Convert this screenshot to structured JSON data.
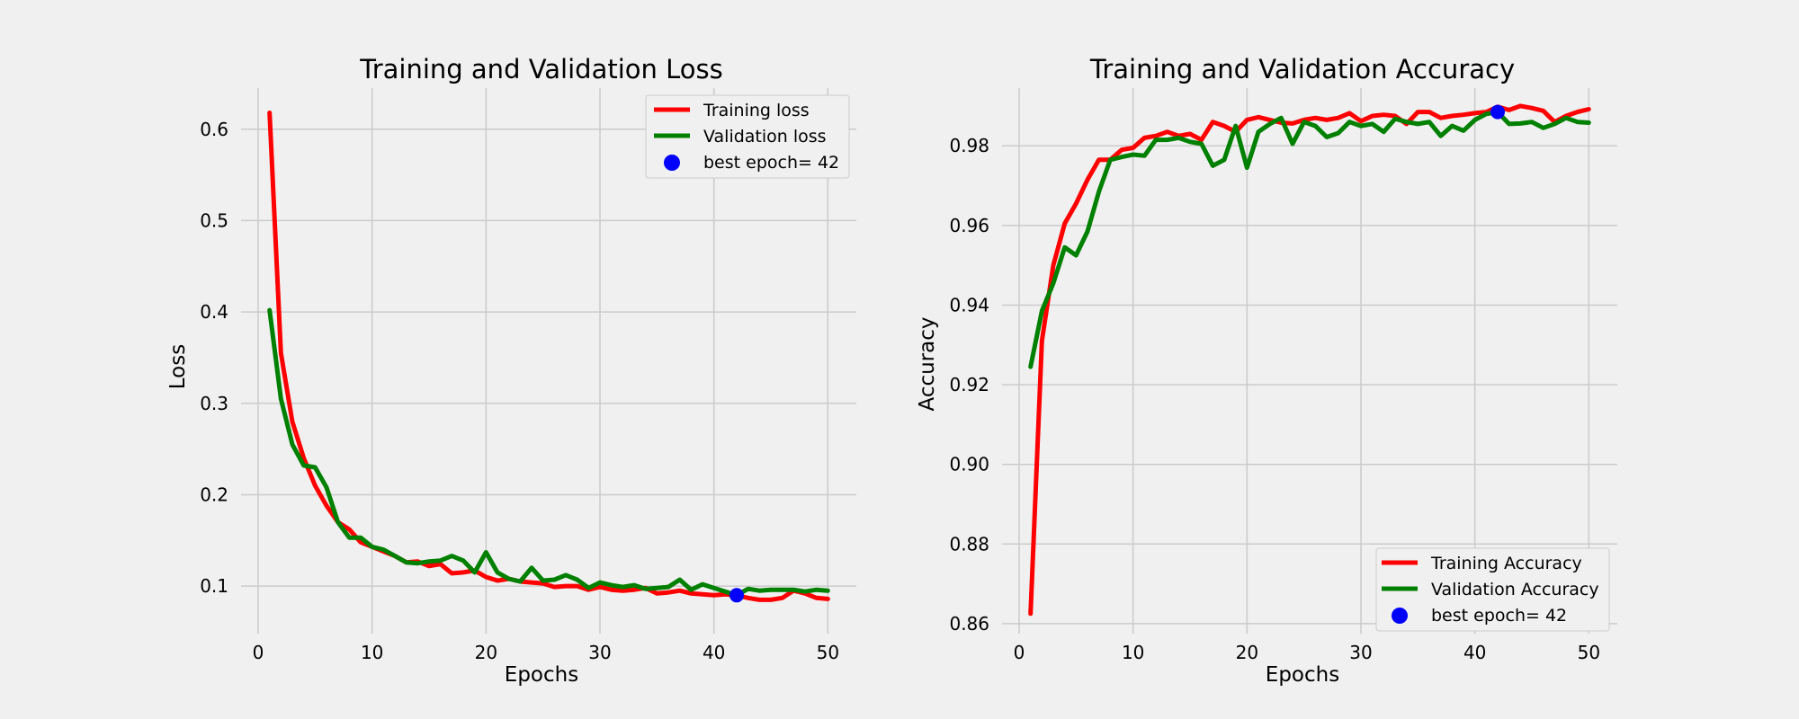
{
  "chart_data": [
    {
      "type": "line",
      "title": "Training and Validation Loss",
      "xlabel": "Epochs",
      "ylabel": "Loss",
      "xlim": [
        -1.5,
        52.5
      ],
      "ylim": [
        0.048,
        0.645
      ],
      "xticks": [
        0,
        10,
        20,
        30,
        40,
        50
      ],
      "xtick_labels": [
        "0",
        "10",
        "20",
        "30",
        "40",
        "50"
      ],
      "yticks": [
        0.1,
        0.2,
        0.3,
        0.4,
        0.5,
        0.6
      ],
      "ytick_labels": [
        "0.1",
        "0.2",
        "0.3",
        "0.4",
        "0.5",
        "0.6"
      ],
      "legend_position": "top-right",
      "x": [
        1,
        2,
        3,
        4,
        5,
        6,
        7,
        8,
        9,
        10,
        11,
        12,
        13,
        14,
        15,
        16,
        17,
        18,
        19,
        20,
        21,
        22,
        23,
        24,
        25,
        26,
        27,
        28,
        29,
        30,
        31,
        32,
        33,
        34,
        35,
        36,
        37,
        38,
        39,
        40,
        41,
        42,
        43,
        44,
        45,
        46,
        47,
        48,
        49,
        50
      ],
      "series": [
        {
          "name": "Training loss",
          "color": "#ff0000",
          "values": [
            0.618,
            0.355,
            0.28,
            0.24,
            0.21,
            0.188,
            0.17,
            0.162,
            0.148,
            0.143,
            0.138,
            0.133,
            0.126,
            0.127,
            0.122,
            0.124,
            0.114,
            0.115,
            0.117,
            0.11,
            0.106,
            0.108,
            0.105,
            0.104,
            0.103,
            0.099,
            0.1,
            0.1,
            0.096,
            0.099,
            0.096,
            0.095,
            0.096,
            0.098,
            0.092,
            0.093,
            0.095,
            0.092,
            0.091,
            0.09,
            0.091,
            0.09,
            0.087,
            0.085,
            0.085,
            0.087,
            0.095,
            0.092,
            0.087,
            0.086
          ]
        },
        {
          "name": "Validation loss",
          "color": "#008000",
          "values": [
            0.402,
            0.305,
            0.255,
            0.232,
            0.23,
            0.208,
            0.17,
            0.153,
            0.153,
            0.143,
            0.14,
            0.133,
            0.126,
            0.125,
            0.127,
            0.128,
            0.133,
            0.128,
            0.115,
            0.137,
            0.115,
            0.108,
            0.105,
            0.12,
            0.106,
            0.107,
            0.112,
            0.107,
            0.098,
            0.104,
            0.101,
            0.099,
            0.101,
            0.097,
            0.098,
            0.099,
            0.107,
            0.096,
            0.102,
            0.098,
            0.094,
            0.09,
            0.097,
            0.095,
            0.096,
            0.096,
            0.096,
            0.094,
            0.096,
            0.095
          ]
        }
      ],
      "best_point": {
        "label": "best epoch= 42",
        "x": 42,
        "y": 0.09,
        "color": "#0000ff"
      }
    },
    {
      "type": "line",
      "title": "Training and Validation Accuracy",
      "xlabel": "Epochs",
      "ylabel": "Accuracy",
      "xlim": [
        -1.5,
        52.5
      ],
      "ylim": [
        0.8575,
        0.9945
      ],
      "xticks": [
        0,
        10,
        20,
        30,
        40,
        50
      ],
      "xtick_labels": [
        "0",
        "10",
        "20",
        "30",
        "40",
        "50"
      ],
      "yticks": [
        0.86,
        0.88,
        0.9,
        0.92,
        0.94,
        0.96,
        0.98
      ],
      "ytick_labels": [
        "0.86",
        "0.88",
        "0.90",
        "0.92",
        "0.94",
        "0.96",
        "0.98"
      ],
      "legend_position": "bottom-right",
      "x": [
        1,
        2,
        3,
        4,
        5,
        6,
        7,
        8,
        9,
        10,
        11,
        12,
        13,
        14,
        15,
        16,
        17,
        18,
        19,
        20,
        21,
        22,
        23,
        24,
        25,
        26,
        27,
        28,
        29,
        30,
        31,
        32,
        33,
        34,
        35,
        36,
        37,
        38,
        39,
        40,
        41,
        42,
        43,
        44,
        45,
        46,
        47,
        48,
        49,
        50
      ],
      "series": [
        {
          "name": "Training Accuracy",
          "color": "#ff0000",
          "values": [
            0.8625,
            0.931,
            0.95,
            0.9605,
            0.9655,
            0.9715,
            0.9765,
            0.9765,
            0.979,
            0.9795,
            0.982,
            0.9825,
            0.9835,
            0.9825,
            0.983,
            0.9815,
            0.986,
            0.985,
            0.9835,
            0.9865,
            0.9872,
            0.9865,
            0.9858,
            0.9856,
            0.9865,
            0.987,
            0.9865,
            0.987,
            0.9882,
            0.9862,
            0.9875,
            0.9878,
            0.9875,
            0.9855,
            0.9885,
            0.9885,
            0.987,
            0.9875,
            0.9878,
            0.9882,
            0.9885,
            0.9898,
            0.989,
            0.99,
            0.9895,
            0.9888,
            0.986,
            0.9875,
            0.9885,
            0.9892
          ]
        },
        {
          "name": "Validation Accuracy",
          "color": "#008000",
          "values": [
            0.9245,
            0.9385,
            0.9455,
            0.9545,
            0.9525,
            0.9585,
            0.9685,
            0.9765,
            0.9772,
            0.9778,
            0.9775,
            0.9815,
            0.9815,
            0.982,
            0.981,
            0.9805,
            0.975,
            0.9765,
            0.985,
            0.9745,
            0.9835,
            0.9855,
            0.987,
            0.9805,
            0.986,
            0.985,
            0.9822,
            0.9832,
            0.986,
            0.985,
            0.9855,
            0.9835,
            0.9868,
            0.986,
            0.9855,
            0.986,
            0.9825,
            0.985,
            0.9838,
            0.9865,
            0.988,
            0.9885,
            0.9855,
            0.9856,
            0.986,
            0.9845,
            0.9855,
            0.987,
            0.986,
            0.9858
          ]
        }
      ],
      "best_point": {
        "label": "best epoch= 42",
        "x": 42,
        "y": 0.9885,
        "color": "#0000ff"
      }
    }
  ]
}
